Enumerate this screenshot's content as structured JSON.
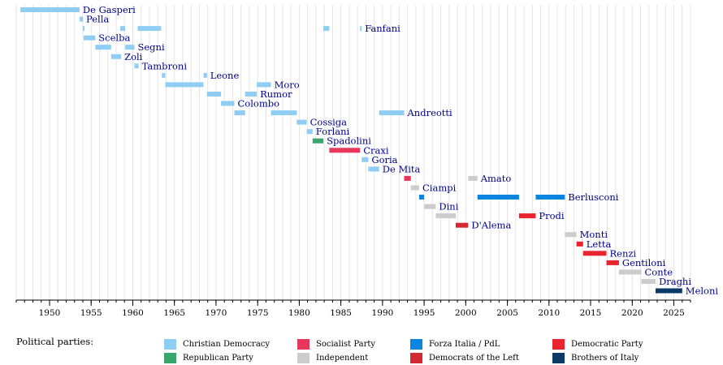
{
  "chart_data": {
    "type": "bar",
    "xlim": [
      1946,
      2027
    ],
    "x_ticks": [
      1950,
      1955,
      1960,
      1965,
      1970,
      1975,
      1980,
      1985,
      1990,
      1995,
      2000,
      2005,
      2010,
      2015,
      2020,
      2025
    ],
    "grid": true,
    "legend_position": "bottom",
    "prime_ministers": [
      {
        "name": "De Gasperi",
        "party": "Christian Democracy",
        "terms": [
          [
            1946.5,
            1953.6
          ]
        ]
      },
      {
        "name": "Pella",
        "party": "Christian Democracy",
        "terms": [
          [
            1953.6,
            1954.0
          ]
        ]
      },
      {
        "name": "Fanfani",
        "party": "Christian Democracy",
        "terms": [
          [
            1954.0,
            1954.1
          ],
          [
            1958.5,
            1959.1
          ],
          [
            1960.6,
            1963.4
          ],
          [
            1982.9,
            1983.6
          ],
          [
            1987.3,
            1987.5
          ]
        ]
      },
      {
        "name": "Scelba",
        "party": "Christian Democracy",
        "terms": [
          [
            1954.1,
            1955.5
          ]
        ]
      },
      {
        "name": "Segni",
        "party": "Christian Democracy",
        "terms": [
          [
            1955.5,
            1957.4
          ],
          [
            1959.1,
            1960.2
          ]
        ]
      },
      {
        "name": "Zoli",
        "party": "Christian Democracy",
        "terms": [
          [
            1957.4,
            1958.6
          ]
        ]
      },
      {
        "name": "Tambroni",
        "party": "Christian Democracy",
        "terms": [
          [
            1960.2,
            1960.7
          ]
        ]
      },
      {
        "name": "Leone",
        "party": "Christian Democracy",
        "terms": [
          [
            1963.5,
            1963.9
          ],
          [
            1968.5,
            1968.9
          ]
        ]
      },
      {
        "name": "Moro",
        "party": "Christian Democracy",
        "terms": [
          [
            1963.9,
            1968.5
          ],
          [
            1974.9,
            1976.6
          ]
        ]
      },
      {
        "name": "Rumor",
        "party": "Christian Democracy",
        "terms": [
          [
            1968.9,
            1970.6
          ],
          [
            1973.5,
            1974.9
          ]
        ]
      },
      {
        "name": "Colombo",
        "party": "Christian Democracy",
        "terms": [
          [
            1970.6,
            1972.2
          ]
        ]
      },
      {
        "name": "Andreotti",
        "party": "Christian Democracy",
        "terms": [
          [
            1972.2,
            1973.5
          ],
          [
            1976.6,
            1979.7
          ],
          [
            1989.6,
            1992.6
          ]
        ]
      },
      {
        "name": "Cossiga",
        "party": "Christian Democracy",
        "terms": [
          [
            1979.7,
            1980.9
          ]
        ]
      },
      {
        "name": "Forlani",
        "party": "Christian Democracy",
        "terms": [
          [
            1980.9,
            1981.6
          ]
        ]
      },
      {
        "name": "Spadolini",
        "party": "Republican Party",
        "terms": [
          [
            1981.6,
            1982.9
          ]
        ]
      },
      {
        "name": "Craxi",
        "party": "Socialist Party",
        "terms": [
          [
            1983.6,
            1987.3
          ]
        ]
      },
      {
        "name": "Goria",
        "party": "Christian Democracy",
        "terms": [
          [
            1987.5,
            1988.3
          ]
        ]
      },
      {
        "name": "De Mita",
        "party": "Christian Democracy",
        "terms": [
          [
            1988.3,
            1989.6
          ]
        ]
      },
      {
        "name": "Amato",
        "party": "Independent",
        "terms": [
          [
            2000.3,
            2001.4
          ]
        ]
      },
      {
        "name": "Amato",
        "party": "Socialist Party",
        "terms": [
          [
            1992.6,
            1993.4
          ]
        ]
      },
      {
        "name": "Ciampi",
        "party": "Independent",
        "terms": [
          [
            1993.4,
            1994.4
          ]
        ]
      },
      {
        "name": "Berlusconi",
        "party": "Forza Italia / PdL",
        "terms": [
          [
            1994.4,
            1995.0
          ],
          [
            2001.4,
            2006.4
          ],
          [
            2008.4,
            2011.9
          ]
        ]
      },
      {
        "name": "Dini",
        "party": "Independent",
        "terms": [
          [
            1995.0,
            1996.4
          ]
        ]
      },
      {
        "name": "Prodi",
        "party": "Independent",
        "terms": [
          [
            1996.4,
            1998.8
          ]
        ]
      },
      {
        "name": "Prodi",
        "party": "Democratic Party",
        "terms": [
          [
            2006.4,
            2008.4
          ]
        ]
      },
      {
        "name": "D'Alema",
        "party": "Democrats of the Left",
        "terms": [
          [
            1998.8,
            2000.3
          ]
        ]
      },
      {
        "name": "Monti",
        "party": "Independent",
        "terms": [
          [
            2011.9,
            2013.3
          ]
        ]
      },
      {
        "name": "Letta",
        "party": "Democratic Party",
        "terms": [
          [
            2013.3,
            2014.1
          ]
        ]
      },
      {
        "name": "Renzi",
        "party": "Democratic Party",
        "terms": [
          [
            2014.1,
            2016.9
          ]
        ]
      },
      {
        "name": "Gentiloni",
        "party": "Democratic Party",
        "terms": [
          [
            2016.9,
            2018.4
          ]
        ]
      },
      {
        "name": "Conte",
        "party": "Independent",
        "terms": [
          [
            2018.4,
            2021.1
          ]
        ]
      },
      {
        "name": "Draghi",
        "party": "Independent",
        "terms": [
          [
            2021.1,
            2022.8
          ]
        ]
      },
      {
        "name": "Meloni",
        "party": "Brothers of Italy",
        "terms": [
          [
            2022.8,
            2026.0
          ]
        ]
      }
    ]
  },
  "legend": {
    "title": "Political parties:",
    "items": [
      {
        "label": "Christian Democracy",
        "color": "#8fcdf5"
      },
      {
        "label": "Socialist Party",
        "color": "#e8375a"
      },
      {
        "label": "Forza Italia / PdL",
        "color": "#0a86e0"
      },
      {
        "label": "Democratic Party",
        "color": "#e8242e"
      },
      {
        "label": "Republican Party",
        "color": "#3aa56c"
      },
      {
        "label": "Independent",
        "color": "#cccccc"
      },
      {
        "label": "Democrats of the Left",
        "color": "#d42833"
      },
      {
        "label": "Brothers of Italy",
        "color": "#0c3a66"
      }
    ]
  }
}
